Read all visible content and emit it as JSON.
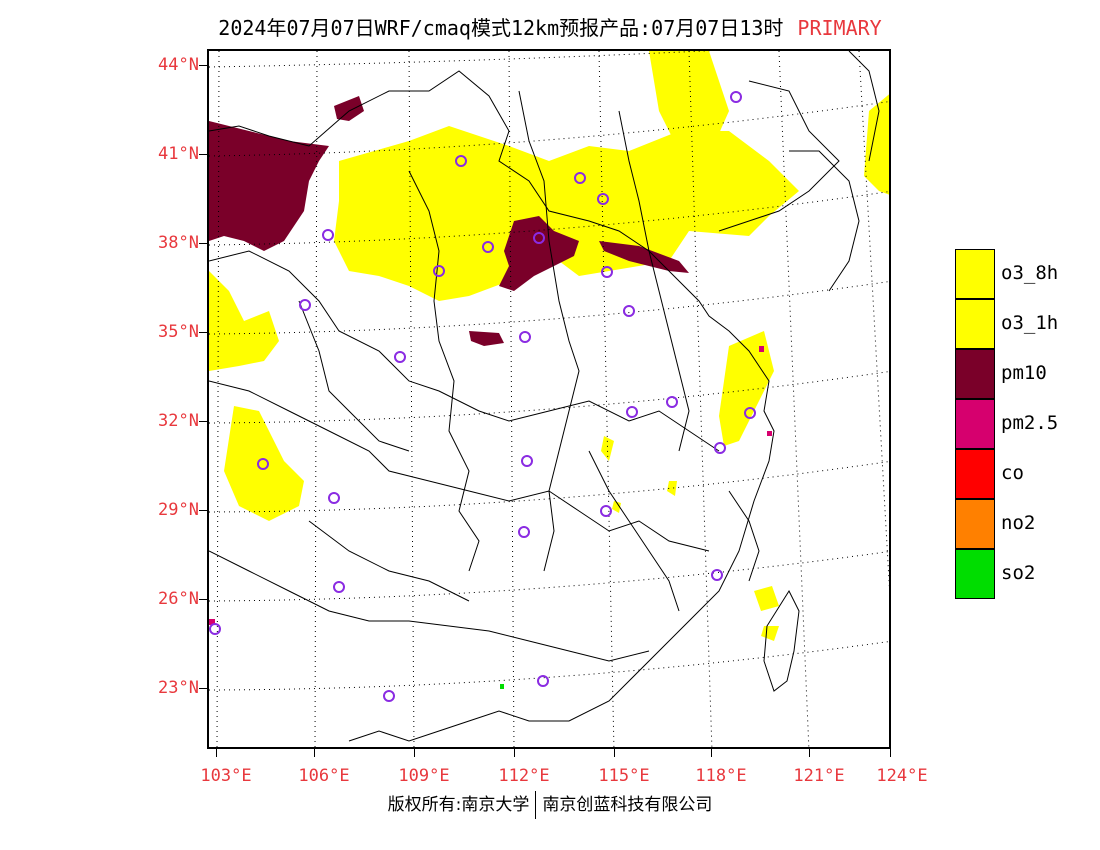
{
  "header": {
    "title": "2024年07月07日WRF/cmaq模式12km预报产品:07月07日13时",
    "primary_label": "PRIMARY"
  },
  "map": {
    "lat_labels": [
      "44°N",
      "41°N",
      "38°N",
      "35°N",
      "32°N",
      "29°N",
      "26°N",
      "23°N"
    ],
    "lon_labels": [
      "103°E",
      "106°E",
      "109°E",
      "112°E",
      "115°E",
      "118°E",
      "121°E",
      "124°E"
    ],
    "colors": {
      "border": "#000000",
      "grid": "#000000",
      "label": "#e8383d",
      "station_marker": "#8a2be2"
    },
    "station_count": 30
  },
  "legend": {
    "items": [
      {
        "label": "o3_8h",
        "color": "#ffff00"
      },
      {
        "label": "o3_1h",
        "color": "#ffff00"
      },
      {
        "label": "pm10",
        "color": "#7a0029"
      },
      {
        "label": "pm2.5",
        "color": "#d6006e"
      },
      {
        "label": "co",
        "color": "#ff0000"
      },
      {
        "label": "no2",
        "color": "#ff8000"
      },
      {
        "label": "so2",
        "color": "#00dd00"
      }
    ]
  },
  "footer": {
    "left": "版权所有:南京大学",
    "right": "南京创蓝科技有限公司"
  }
}
